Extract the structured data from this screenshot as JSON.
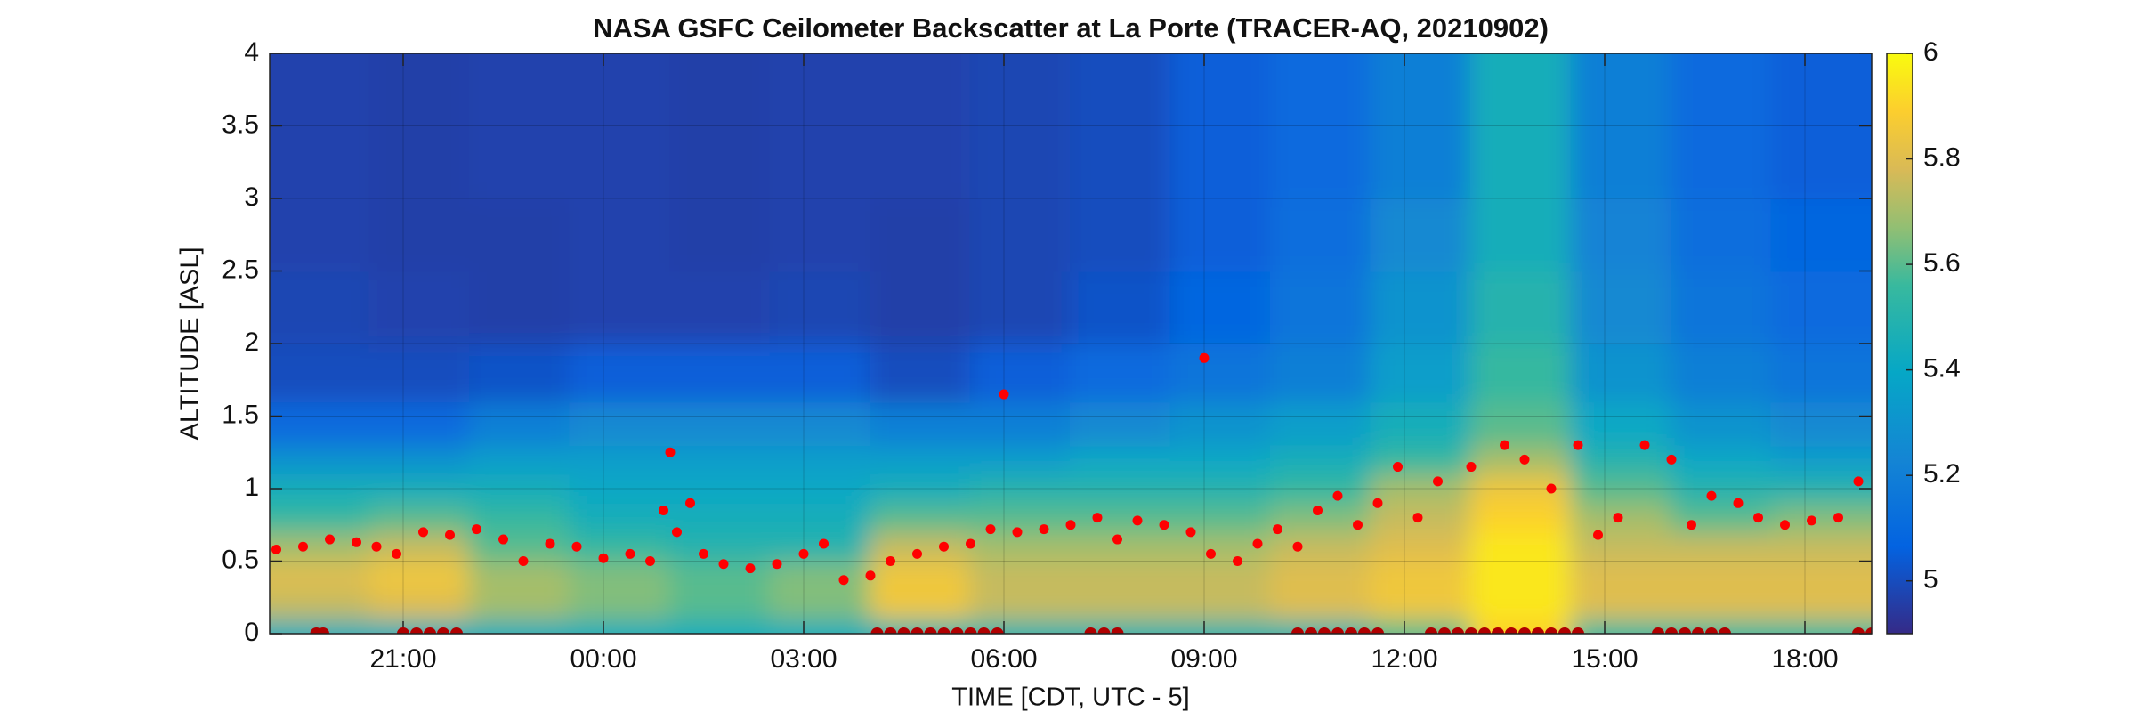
{
  "chart_data": {
    "type": "heatmap",
    "title": "NASA GSFC Ceilometer Backscatter at La Porte (TRACER-AQ, 20210902)",
    "x_label": "TIME [CDT, UTC - 5]",
    "y_label": "ALTITUDE [ASL]",
    "xlim": [
      19,
      43
    ],
    "ylim": [
      0,
      4
    ],
    "clim": [
      4.9,
      6
    ],
    "xticks": [
      {
        "value": 21,
        "label": "21:00"
      },
      {
        "value": 24,
        "label": "00:00"
      },
      {
        "value": 27,
        "label": "03:00"
      },
      {
        "value": 30,
        "label": "06:00"
      },
      {
        "value": 33,
        "label": "09:00"
      },
      {
        "value": 36,
        "label": "12:00"
      },
      {
        "value": 39,
        "label": "15:00"
      },
      {
        "value": 42,
        "label": "18:00"
      }
    ],
    "yticks": [
      0,
      0.5,
      1,
      1.5,
      2,
      2.5,
      3,
      3.5,
      4
    ],
    "cticks": [
      5,
      5.2,
      5.4,
      5.6,
      5.8,
      6
    ],
    "grid": true,
    "x_edges": [
      19,
      20.5,
      22,
      23.5,
      25,
      26.5,
      28,
      29.5,
      31,
      32.5,
      34,
      35.5,
      37,
      38.5,
      40,
      41.5,
      43
    ],
    "y_edges": [
      0,
      0.1,
      0.3,
      0.5,
      0.7,
      0.9,
      1.1,
      1.3,
      1.6,
      2,
      2.5,
      3,
      4
    ],
    "z": [
      [
        5.45,
        5.75,
        5.8,
        5.7,
        5.55,
        5.45,
        5.3,
        5.1,
        5.0,
        4.98,
        4.97,
        4.97
      ],
      [
        5.45,
        5.8,
        5.85,
        5.75,
        5.6,
        5.45,
        5.3,
        5.1,
        5.0,
        4.97,
        4.96,
        4.96
      ],
      [
        5.45,
        5.7,
        5.7,
        5.6,
        5.55,
        5.45,
        5.35,
        5.2,
        5.02,
        4.96,
        4.96,
        4.97
      ],
      [
        5.45,
        5.65,
        5.65,
        5.55,
        5.45,
        5.4,
        5.35,
        5.25,
        5.05,
        4.97,
        4.97,
        4.97
      ],
      [
        5.45,
        5.6,
        5.6,
        5.5,
        5.45,
        5.4,
        5.35,
        5.25,
        5.05,
        4.97,
        4.96,
        4.96
      ],
      [
        5.45,
        5.65,
        5.65,
        5.5,
        5.45,
        5.4,
        5.35,
        5.25,
        5.05,
        4.98,
        4.97,
        4.97
      ],
      [
        5.5,
        5.85,
        5.85,
        5.75,
        5.6,
        5.45,
        5.35,
        5.2,
        5.0,
        4.96,
        4.96,
        4.97
      ],
      [
        5.5,
        5.75,
        5.75,
        5.7,
        5.6,
        5.5,
        5.35,
        5.2,
        5.05,
        4.98,
        4.98,
        4.98
      ],
      [
        5.5,
        5.75,
        5.75,
        5.7,
        5.6,
        5.5,
        5.4,
        5.25,
        5.1,
        5.02,
        5.0,
        5.0
      ],
      [
        5.5,
        5.75,
        5.75,
        5.7,
        5.6,
        5.5,
        5.4,
        5.3,
        5.15,
        5.08,
        5.05,
        5.05
      ],
      [
        5.5,
        5.8,
        5.8,
        5.75,
        5.65,
        5.55,
        5.45,
        5.35,
        5.2,
        5.15,
        5.12,
        5.1
      ],
      [
        5.6,
        5.85,
        5.85,
        5.8,
        5.75,
        5.7,
        5.55,
        5.45,
        5.35,
        5.3,
        5.25,
        5.2
      ],
      [
        5.9,
        5.95,
        5.95,
        5.95,
        5.9,
        5.85,
        5.7,
        5.6,
        5.55,
        5.5,
        5.45,
        5.45
      ],
      [
        5.55,
        5.8,
        5.8,
        5.75,
        5.7,
        5.6,
        5.5,
        5.4,
        5.3,
        5.25,
        5.22,
        5.2
      ],
      [
        5.55,
        5.8,
        5.8,
        5.75,
        5.6,
        5.5,
        5.4,
        5.3,
        5.2,
        5.15,
        5.12,
        5.1
      ],
      [
        5.55,
        5.8,
        5.8,
        5.75,
        5.65,
        5.5,
        5.35,
        5.25,
        5.15,
        5.1,
        5.08,
        5.05
      ]
    ],
    "series": [
      {
        "color": "#ff0000",
        "x": [
          19.1,
          19.5,
          19.9,
          20.3,
          20.6,
          20.9,
          21.3,
          21.7,
          22.1,
          22.5,
          22.8,
          23.2,
          23.6,
          24.0,
          24.4,
          24.7,
          24.9,
          25.0,
          25.1,
          25.3,
          25.5,
          25.8,
          26.2,
          26.6,
          27.0,
          27.3,
          27.6,
          28.0,
          28.3,
          28.7,
          29.1,
          29.5,
          29.8,
          30.0,
          30.2,
          30.6,
          31.0,
          31.4,
          31.7,
          32.0,
          32.4,
          32.8,
          33.0,
          33.1,
          33.5,
          33.8,
          34.1,
          34.4,
          34.7,
          35.0,
          35.3,
          35.6,
          35.9,
          36.2,
          36.5,
          37.0,
          37.5,
          37.8,
          38.2,
          38.6,
          38.9,
          39.2,
          39.6,
          40.0,
          40.3,
          40.6,
          41.0,
          41.3,
          41.7,
          42.1,
          42.5,
          42.8
        ],
        "y": [
          0.58,
          0.6,
          0.65,
          0.63,
          0.6,
          0.55,
          0.7,
          0.68,
          0.72,
          0.65,
          0.5,
          0.62,
          0.6,
          0.52,
          0.55,
          0.5,
          0.85,
          1.25,
          0.7,
          0.9,
          0.55,
          0.48,
          0.45,
          0.48,
          0.55,
          0.62,
          0.37,
          0.4,
          0.5,
          0.55,
          0.6,
          0.62,
          0.72,
          1.65,
          0.7,
          0.72,
          0.75,
          0.8,
          0.65,
          0.78,
          0.75,
          0.7,
          1.9,
          0.55,
          0.5,
          0.62,
          0.72,
          0.6,
          0.85,
          0.95,
          0.75,
          0.9,
          1.15,
          0.8,
          1.05,
          1.15,
          1.3,
          1.2,
          1.0,
          1.3,
          0.68,
          0.8,
          1.3,
          1.2,
          0.75,
          0.95,
          0.9,
          0.8,
          0.75,
          0.78,
          0.8,
          1.05
        ]
      },
      {
        "color": "#b00000",
        "x": [
          19.7,
          19.8,
          21.0,
          21.2,
          21.4,
          21.6,
          21.8,
          28.1,
          28.3,
          28.5,
          28.7,
          28.9,
          29.1,
          29.3,
          29.5,
          29.7,
          29.9,
          31.3,
          31.5,
          31.7,
          34.4,
          34.6,
          34.8,
          35.0,
          35.2,
          35.4,
          35.6,
          36.4,
          36.6,
          36.8,
          37.0,
          37.2,
          37.4,
          37.6,
          37.8,
          38.0,
          38.2,
          38.4,
          38.6,
          39.8,
          40.0,
          40.2,
          40.4,
          40.6,
          40.8,
          42.8,
          43.0
        ],
        "y": [
          0,
          0,
          0,
          0,
          0,
          0,
          0,
          0,
          0,
          0,
          0,
          0,
          0,
          0,
          0,
          0,
          0,
          0,
          0,
          0,
          0,
          0,
          0,
          0,
          0,
          0,
          0,
          0,
          0,
          0,
          0,
          0,
          0,
          0,
          0,
          0,
          0,
          0,
          0,
          0,
          0,
          0,
          0,
          0,
          0,
          0,
          0
        ]
      }
    ]
  }
}
